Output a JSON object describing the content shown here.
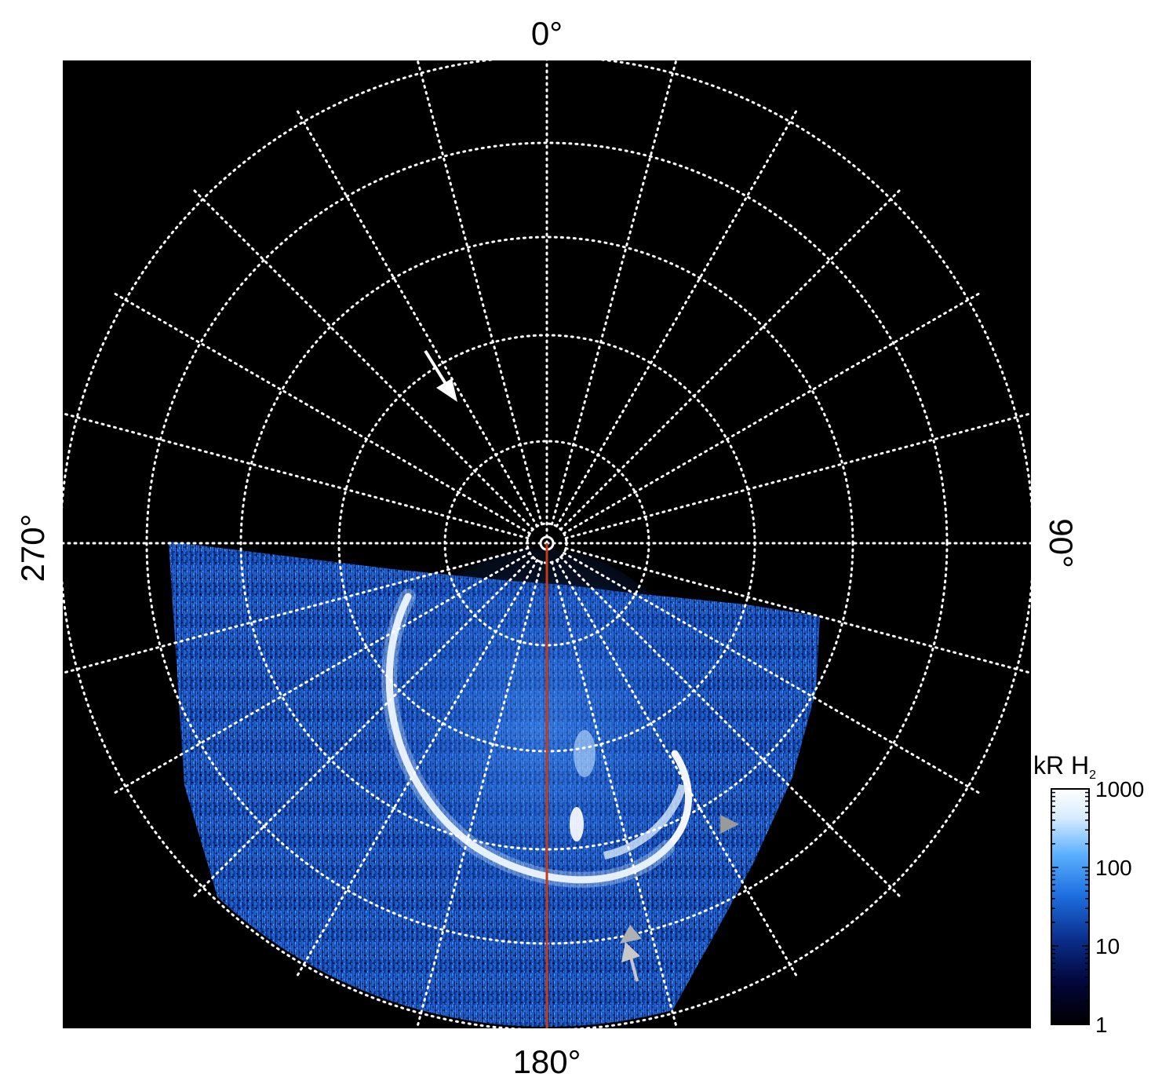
{
  "chart_data": {
    "type": "heatmap",
    "projection": "polar",
    "angle_labels": {
      "top": "0°",
      "right": "90°",
      "bottom": "180°",
      "left": "270°"
    },
    "angular_grid_spacing_deg": 15,
    "radial_grid_rings": 5,
    "grid": true,
    "grid_style": "white dotted",
    "background_color": "#000000",
    "colorbar": {
      "title_main": "kR H",
      "title_sub": "2",
      "scale": "log",
      "range": [
        1,
        1000
      ],
      "ticks": [
        "1000",
        "100",
        "10",
        "1"
      ],
      "colors": [
        "#000000",
        "#02063a",
        "#0a2e8c",
        "#1e6fe0",
        "#5ab0ff",
        "#d8ecff",
        "#ffffff"
      ],
      "placement": "right-bottom"
    },
    "reference_meridian_deg": 180,
    "reference_line_color": "#c83a12",
    "annotations": [
      {
        "kind": "arrow",
        "color": "#ffffff"
      },
      {
        "kind": "arrowhead",
        "color": "#9a9a9a"
      },
      {
        "kind": "arrow",
        "color": "#c8c8c8"
      },
      {
        "kind": "arrowhead",
        "color": "#b0b0b0"
      }
    ]
  }
}
